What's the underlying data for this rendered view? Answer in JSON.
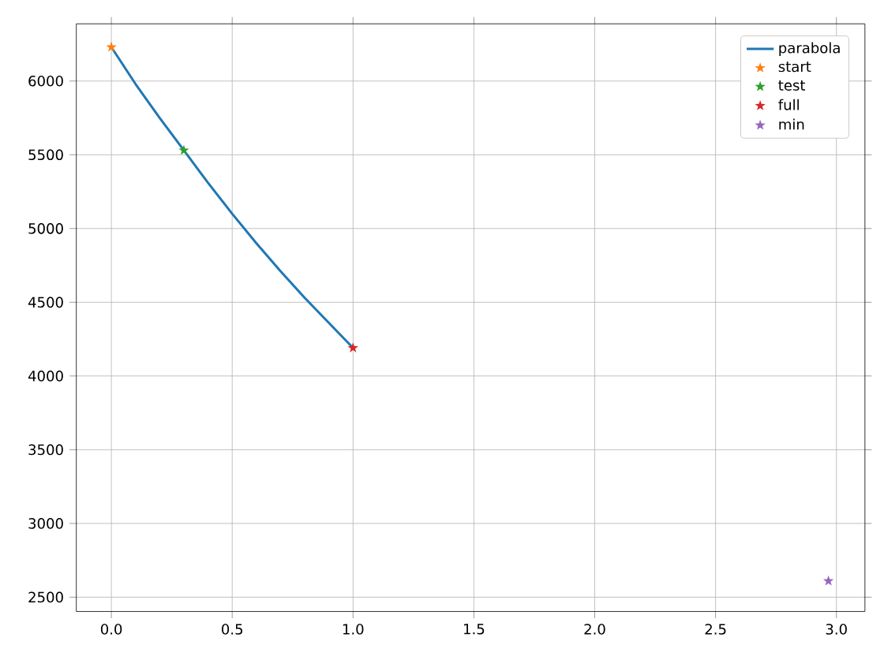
{
  "chart_data": {
    "type": "line",
    "xlim": [
      -0.145,
      3.118
    ],
    "ylim": [
      2403,
      6388
    ],
    "xticks": [
      {
        "value": 0,
        "label": "0.0"
      },
      0.5,
      {
        "value": 1,
        "label": "1.0"
      },
      1.5,
      {
        "value": 2,
        "label": "2.0"
      },
      2.5,
      {
        "value": 3,
        "label": "3.0"
      }
    ],
    "yticks": [
      2500,
      3000,
      3500,
      4000,
      4500,
      5000,
      5500,
      6000
    ],
    "grid": true,
    "legend": "top right",
    "series": [
      {
        "name": "parabola",
        "marker": "none",
        "color": "#1f77b4",
        "x": [
          0,
          0.1,
          0.2,
          0.3,
          0.4,
          0.5,
          0.6,
          0.7,
          0.8,
          0.9,
          1.0
        ],
        "values": [
          6230,
          5980,
          5750,
          5530,
          5310,
          5100,
          4900,
          4710,
          4530,
          4360,
          4190
        ]
      },
      {
        "name": "start",
        "type": "scatter",
        "marker": "star",
        "color": "#ff7f0e",
        "x": [
          0
        ],
        "values": [
          6230
        ]
      },
      {
        "name": "test",
        "type": "scatter",
        "marker": "star",
        "color": "#2ca02c",
        "x": [
          0.3
        ],
        "values": [
          5530
        ]
      },
      {
        "name": "full",
        "type": "scatter",
        "marker": "star",
        "color": "#d62728",
        "x": [
          1.0
        ],
        "values": [
          4190
        ]
      },
      {
        "name": "min",
        "type": "scatter",
        "marker": "star",
        "color": "#9467bd",
        "x": [
          2.967
        ],
        "values": [
          2610
        ]
      }
    ]
  }
}
